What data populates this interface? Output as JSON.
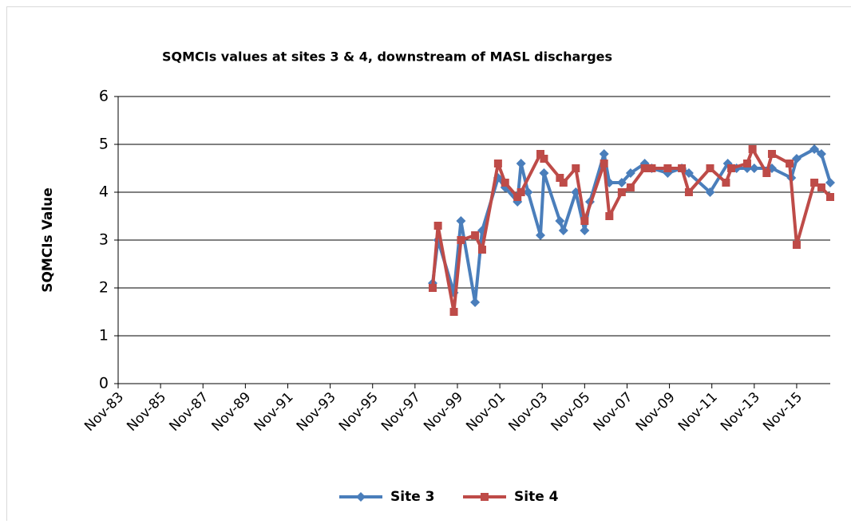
{
  "chart_data": {
    "type": "line",
    "title": "SQMCIs values at sites 3 & 4, downstream of MASL discharges",
    "ylabel": "SQMCIs Value",
    "xlim": [
      "1983-11",
      "2017-06"
    ],
    "xticks": [
      {
        "value": "1983-11",
        "label": "Nov-83"
      },
      {
        "value": "1985-11",
        "label": "Nov-85"
      },
      {
        "value": "1987-11",
        "label": "Nov-87"
      },
      {
        "value": "1989-11",
        "label": "Nov-89"
      },
      {
        "value": "1991-11",
        "label": "Nov-91"
      },
      {
        "value": "1993-11",
        "label": "Nov-93"
      },
      {
        "value": "1995-11",
        "label": "Nov-95"
      },
      {
        "value": "1997-11",
        "label": "Nov-97"
      },
      {
        "value": "1999-11",
        "label": "Nov-99"
      },
      {
        "value": "2001-11",
        "label": "Nov-01"
      },
      {
        "value": "2003-11",
        "label": "Nov-03"
      },
      {
        "value": "2005-11",
        "label": "Nov-05"
      },
      {
        "value": "2007-11",
        "label": "Nov-07"
      },
      {
        "value": "2009-11",
        "label": "Nov-09"
      },
      {
        "value": "2011-11",
        "label": "Nov-11"
      },
      {
        "value": "2013-11",
        "label": "Nov-13"
      },
      {
        "value": "2015-11",
        "label": "Nov-15"
      }
    ],
    "ylim": [
      0,
      6
    ],
    "yticks": [
      0,
      1,
      2,
      3,
      4,
      5,
      6
    ],
    "grid": true,
    "legend": "bottom",
    "series": [
      {
        "name": "Site 3",
        "color": "#4a7ebb",
        "marker": "diamond",
        "x": [
          "1998-09",
          "1998-12",
          "1999-09",
          "2000-01",
          "2000-09",
          "2001-01",
          "2001-10",
          "2002-02",
          "2002-09",
          "2002-11",
          "2003-03",
          "2003-10",
          "2003-12",
          "2004-09",
          "2004-11",
          "2005-06",
          "2005-11",
          "2006-02",
          "2006-10",
          "2007-01",
          "2007-08",
          "2008-01",
          "2008-09",
          "2009-01",
          "2009-10",
          "2010-06",
          "2010-10",
          "2011-10",
          "2012-08",
          "2013-01",
          "2013-07",
          "2013-11",
          "2014-09",
          "2015-08",
          "2015-11",
          "2016-09",
          "2017-01",
          "2017-06"
        ],
        "values": [
          2.1,
          3.0,
          1.9,
          3.4,
          1.7,
          3.2,
          4.3,
          4.1,
          3.8,
          4.6,
          4.0,
          3.1,
          4.4,
          3.4,
          3.2,
          4.0,
          3.2,
          3.8,
          4.8,
          4.2,
          4.2,
          4.4,
          4.6,
          4.5,
          4.4,
          4.5,
          4.4,
          4.0,
          4.6,
          4.5,
          4.5,
          4.5,
          4.5,
          4.3,
          4.7,
          4.9,
          4.8,
          4.2
        ]
      },
      {
        "name": "Site 4",
        "color": "#be4b48",
        "marker": "square",
        "x": [
          "1998-09",
          "1998-12",
          "1999-09",
          "2000-01",
          "2000-09",
          "2001-01",
          "2001-10",
          "2002-02",
          "2002-09",
          "2002-11",
          "2003-10",
          "2003-12",
          "2004-09",
          "2004-11",
          "2005-06",
          "2005-11",
          "2006-10",
          "2007-01",
          "2007-08",
          "2008-01",
          "2008-09",
          "2009-01",
          "2009-10",
          "2010-06",
          "2010-10",
          "2011-10",
          "2012-07",
          "2012-10",
          "2013-07",
          "2013-10",
          "2014-06",
          "2014-09",
          "2015-07",
          "2015-11",
          "2016-09",
          "2017-01",
          "2017-06"
        ],
        "values": [
          2.0,
          3.3,
          1.5,
          3.0,
          3.1,
          2.8,
          4.6,
          4.2,
          3.9,
          4.0,
          4.8,
          4.7,
          4.3,
          4.2,
          4.5,
          3.4,
          4.6,
          3.5,
          4.0,
          4.1,
          4.5,
          4.5,
          4.5,
          4.5,
          4.0,
          4.5,
          4.2,
          4.5,
          4.6,
          4.9,
          4.4,
          4.8,
          4.6,
          2.9,
          4.2,
          4.1,
          3.9
        ]
      }
    ]
  }
}
